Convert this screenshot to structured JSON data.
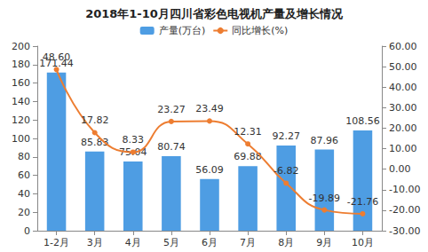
{
  "chart_data": {
    "type": "bar",
    "title": "2018年1-10月四川省彩色电视机产量及增长情况",
    "categories": [
      "1-2月",
      "3月",
      "4月",
      "5月",
      "6月",
      "7月",
      "8月",
      "9月",
      "10月"
    ],
    "series": [
      {
        "name": "产量(万台)",
        "type": "bar",
        "color": "#4e9de3",
        "values": [
          171.44,
          85.83,
          75.04,
          80.74,
          56.09,
          69.88,
          92.27,
          87.96,
          108.56
        ]
      },
      {
        "name": "同比增长(%)",
        "type": "line",
        "axis": "y2",
        "color": "#ed7d31",
        "marker": "circle",
        "values": [
          48.6,
          17.82,
          8.33,
          23.27,
          23.49,
          12.31,
          -6.82,
          -19.89,
          -21.76
        ],
        "value_labels": [
          "48.60",
          "17.82",
          "8.33",
          "23.27",
          "23.49",
          "12.31",
          "-6.82",
          "-19.89",
          "-21.76"
        ]
      }
    ],
    "ylim": [
      0,
      200
    ],
    "yticks": [
      0,
      20,
      40,
      60,
      80,
      100,
      120,
      140,
      160,
      180,
      200
    ],
    "y2lim": [
      -30,
      60
    ],
    "y2ticks": [
      {
        "value": -30,
        "label": "-30.00"
      },
      {
        "value": -20,
        "label": "-20.00"
      },
      {
        "value": -10,
        "label": "-10.00"
      },
      {
        "value": 0,
        "label": "0.00"
      },
      {
        "value": 10,
        "label": "10.00"
      },
      {
        "value": 20,
        "label": "20.00"
      },
      {
        "value": 30,
        "label": "30.00"
      },
      {
        "value": 40,
        "label": "40.00"
      },
      {
        "value": 50,
        "label": "50.00"
      },
      {
        "value": 60,
        "label": "60.00"
      }
    ],
    "legend": "top",
    "grid": false,
    "data_labels": true
  }
}
